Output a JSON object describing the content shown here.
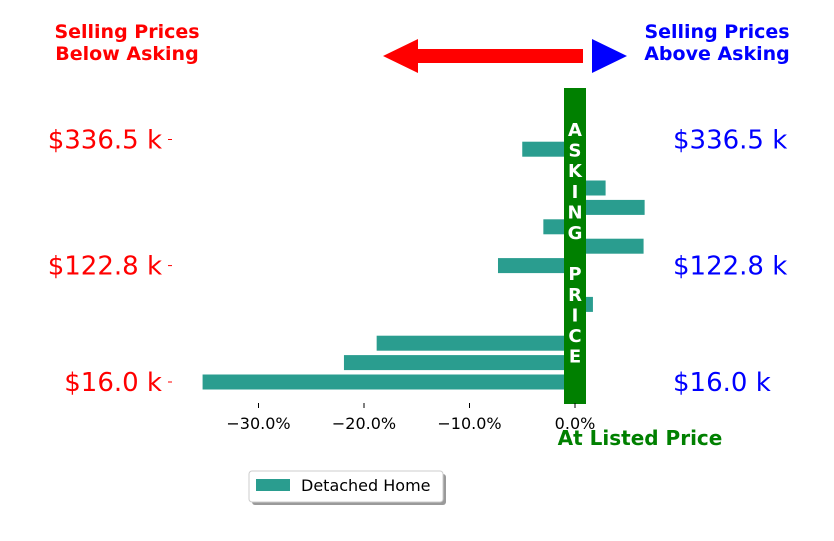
{
  "chart_data": {
    "type": "bar",
    "orientation": "horizontal",
    "categories": [
      "$16.0 k",
      "",
      "",
      "",
      "",
      "",
      "$122.8 k",
      "",
      "",
      "",
      "",
      "",
      "$336.5 k"
    ],
    "series": [
      {
        "name": "Detached Home",
        "values": [
          -35.3,
          -21.9,
          -18.8,
          0.0,
          1.7,
          -1.0,
          -7.3,
          6.5,
          -3.0,
          6.6,
          2.9,
          -1.0,
          -5.0
        ]
      }
    ],
    "xlim": [
      -36.5,
      8.5
    ],
    "x_ticks": [
      {
        "value": -30,
        "label": "−30.0%"
      },
      {
        "value": -20,
        "label": "−20.0%"
      },
      {
        "value": -10,
        "label": "−10.0%"
      },
      {
        "value": 0,
        "label": "0.0%"
      }
    ],
    "y_tick_labels_left": [
      {
        "index": 0,
        "label": "$16.0 k"
      },
      {
        "index": 6,
        "label": "$122.8 k"
      },
      {
        "index": 12.5,
        "label": "$336.5 k"
      }
    ],
    "y_tick_labels_right": [
      {
        "index": 0,
        "label": "$16.0 k"
      },
      {
        "index": 6,
        "label": "$122.8 k"
      },
      {
        "index": 12.5,
        "label": "$336.5 k"
      }
    ],
    "vertical_band_label": "ASKING PRICE",
    "x_axis_caption": "At Listed Price",
    "header_left": [
      "Selling Prices",
      "Below Asking"
    ],
    "header_right": [
      "Selling Prices",
      "Above Asking"
    ],
    "legend_label": "Detached Home",
    "legend_position": "bottom-left",
    "grid": false
  },
  "colors": {
    "bar": "#2a9d8f",
    "asking_band": "#008000",
    "below": "#ff0000",
    "above": "#0000ff",
    "listed_label": "#008000"
  }
}
